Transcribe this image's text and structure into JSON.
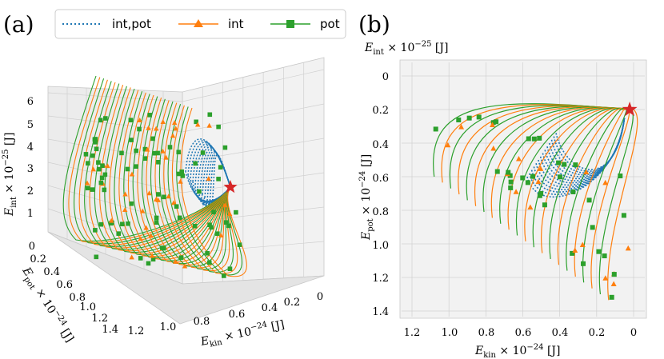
{
  "colors": {
    "int_pot": "#1f77b4",
    "int": "#ff7f0e",
    "pot": "#2ca02c",
    "star": "#d62728",
    "pane": "#f2f2f2",
    "grid": "#d0d0d0"
  },
  "legend": {
    "int_pot": "int,pot",
    "int": "int",
    "pot": "pot"
  },
  "chart_data": [
    {
      "panel": "(a)",
      "type": "line",
      "projection": "3d",
      "series": [
        {
          "name": "int,pot",
          "style": "dotted",
          "marker": "none"
        },
        {
          "name": "int",
          "style": "solid",
          "marker": "triangle"
        },
        {
          "name": "pot",
          "style": "solid",
          "marker": "square"
        }
      ],
      "xlabel": "E_kin × 10^-24 [J]",
      "ylabel": "E_pot × 10^-24 [J]",
      "zlabel": "E_int × 10^-25 [J]",
      "x_ticks": [
        "1.2",
        "1.0",
        "0.8",
        "0.6",
        "0.4",
        "0.2",
        "0"
      ],
      "y_ticks": [
        "0",
        "0.2",
        "0.4",
        "0.6",
        "0.8",
        "1.0",
        "1.2",
        "1.4"
      ],
      "z_ticks": [
        "1",
        "2",
        "3",
        "4",
        "5",
        "6"
      ],
      "xlim": [
        0,
        1.3
      ],
      "ylim": [
        0,
        1.45
      ],
      "zlim": [
        0,
        6.3
      ],
      "star_point": {
        "x": 0.05,
        "y": 0.2,
        "z": 2.0
      }
    },
    {
      "panel": "(b)",
      "type": "line",
      "projection": "3d-top-view",
      "series": [
        {
          "name": "int,pot",
          "style": "dotted",
          "marker": "none"
        },
        {
          "name": "int",
          "style": "solid",
          "marker": "triangle"
        },
        {
          "name": "pot",
          "style": "solid",
          "marker": "square"
        }
      ],
      "xlabel": "E_kin × 10^-24 [J]",
      "ylabel": "E_pot × 10^-24 [J]",
      "zlabel": "E_int × 10^-25 [J]",
      "x_ticks": [
        "1.2",
        "1.0",
        "0.8",
        "0.6",
        "0.4",
        "0.2",
        "0"
      ],
      "y_ticks": [
        "0",
        "0.2",
        "0.4",
        "0.6",
        "0.8",
        "1.0",
        "1.2",
        "1.4"
      ],
      "xlim": [
        0,
        1.3
      ],
      "ylim": [
        0,
        1.45
      ],
      "star_point": {
        "x": 0.03,
        "y": 0.2
      }
    }
  ]
}
